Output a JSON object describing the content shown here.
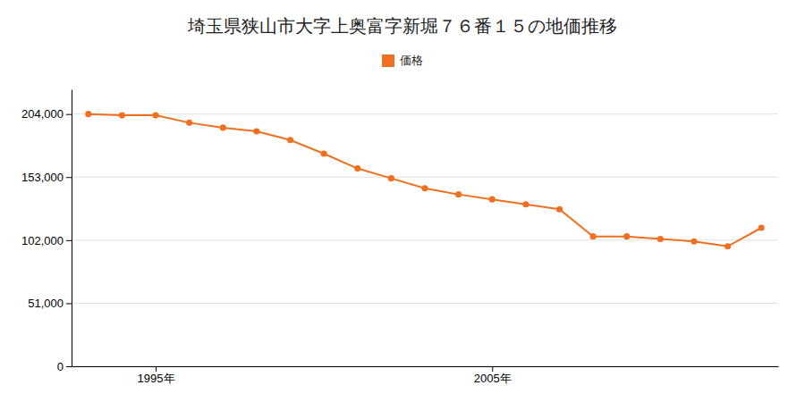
{
  "chart_data": {
    "type": "line",
    "title": "埼玉県狭山市大字上奥富字新堀７６番１５の地価推移",
    "x": [
      1993,
      1994,
      1995,
      1996,
      1997,
      1998,
      1999,
      2000,
      2001,
      2002,
      2003,
      2004,
      2005,
      2006,
      2007,
      2008,
      2009,
      2010,
      2011,
      2012,
      2013
    ],
    "series": [
      {
        "name": "価格",
        "color": "#f07020",
        "marker": "circle",
        "values": [
          204000,
          203000,
          203000,
          197000,
          193000,
          190000,
          183000,
          172000,
          160000,
          152000,
          144000,
          139000,
          135000,
          131000,
          127000,
          105000,
          105000,
          103000,
          101000,
          97000,
          112000
        ]
      }
    ],
    "xlim": [
      1992.5,
      2013.5
    ],
    "xticks": [
      {
        "value": 1995,
        "label": "1995年"
      },
      {
        "value": 2005,
        "label": "2005年"
      }
    ],
    "ylim": [
      0,
      224000
    ],
    "yticks": [
      0,
      {
        "value": 51000,
        "label": "51,000"
      },
      {
        "value": 102000,
        "label": "102,000"
      },
      {
        "value": 153000,
        "label": "153,000"
      },
      {
        "value": 204000,
        "label": "204,000"
      }
    ],
    "grid": true,
    "legend": "top"
  }
}
